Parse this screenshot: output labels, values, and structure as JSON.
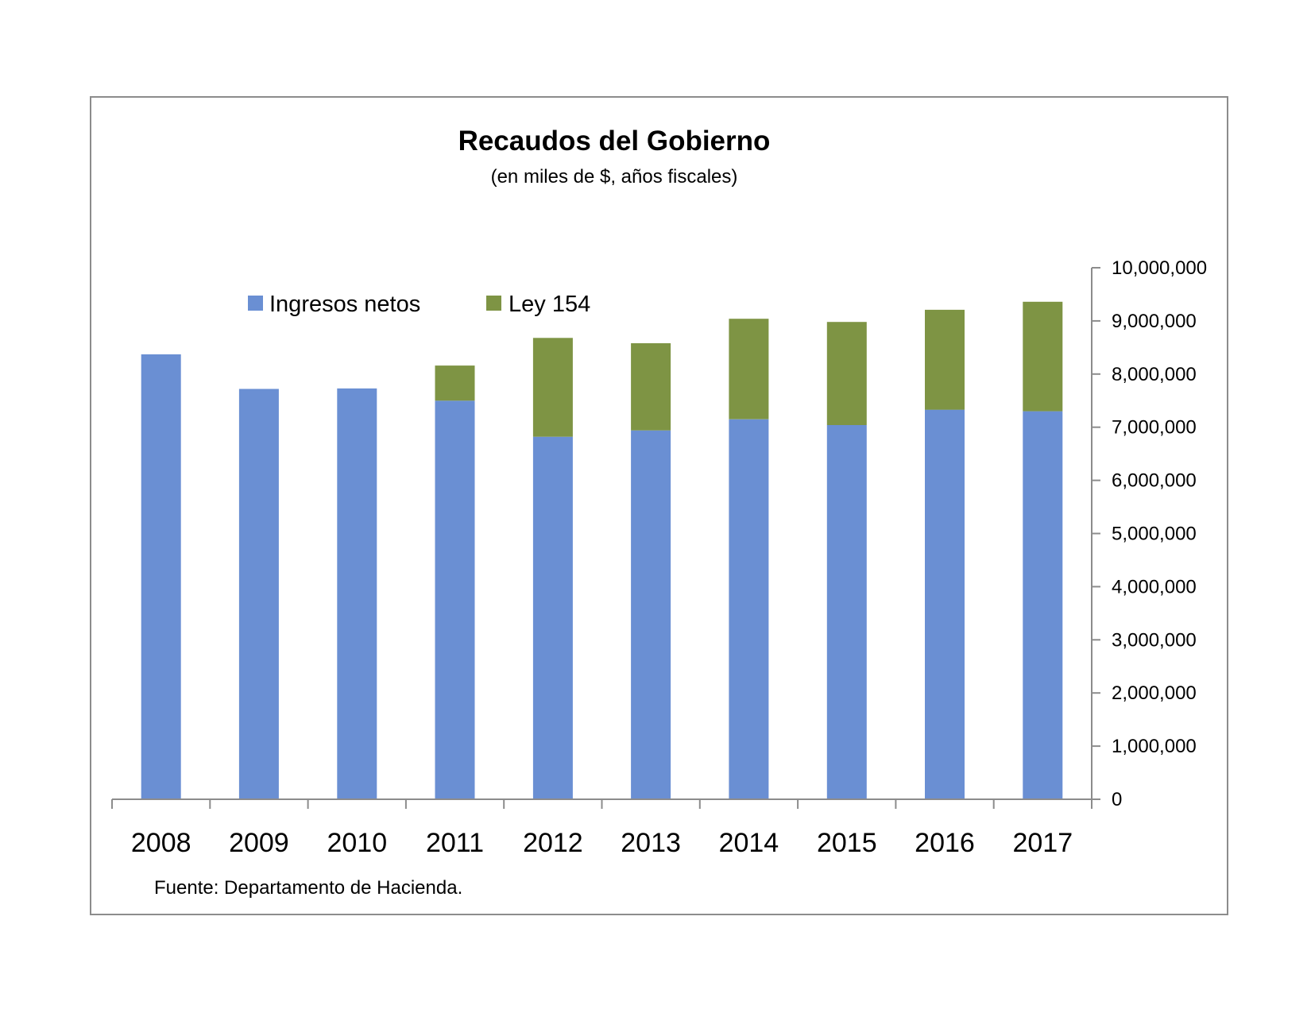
{
  "chart_data": {
    "type": "bar",
    "stacked": true,
    "title": "Recaudos del Gobierno",
    "subtitle": "(en miles de $, años fiscales)",
    "source": "Fuente: Departamento de Hacienda.",
    "categories": [
      "2008",
      "2009",
      "2010",
      "2011",
      "2012",
      "2013",
      "2014",
      "2015",
      "2016",
      "2017"
    ],
    "series": [
      {
        "name": "Ingresos netos",
        "color": "#6a8fd3",
        "values": [
          8370000,
          7720000,
          7730000,
          7500000,
          6820000,
          6940000,
          7150000,
          7040000,
          7330000,
          7300000
        ]
      },
      {
        "name": "Ley 154",
        "color": "#7e9444",
        "values": [
          0,
          0,
          0,
          660000,
          1860000,
          1640000,
          1890000,
          1940000,
          1880000,
          2060000
        ]
      }
    ],
    "yaxis_position": "right",
    "ylim": [
      0,
      10000000
    ],
    "yticks": [
      "0",
      "1,000,000",
      "2,000,000",
      "3,000,000",
      "4,000,000",
      "5,000,000",
      "6,000,000",
      "7,000,000",
      "8,000,000",
      "9,000,000",
      "10,000,000"
    ],
    "grid": false,
    "legend_position": "top-left"
  }
}
